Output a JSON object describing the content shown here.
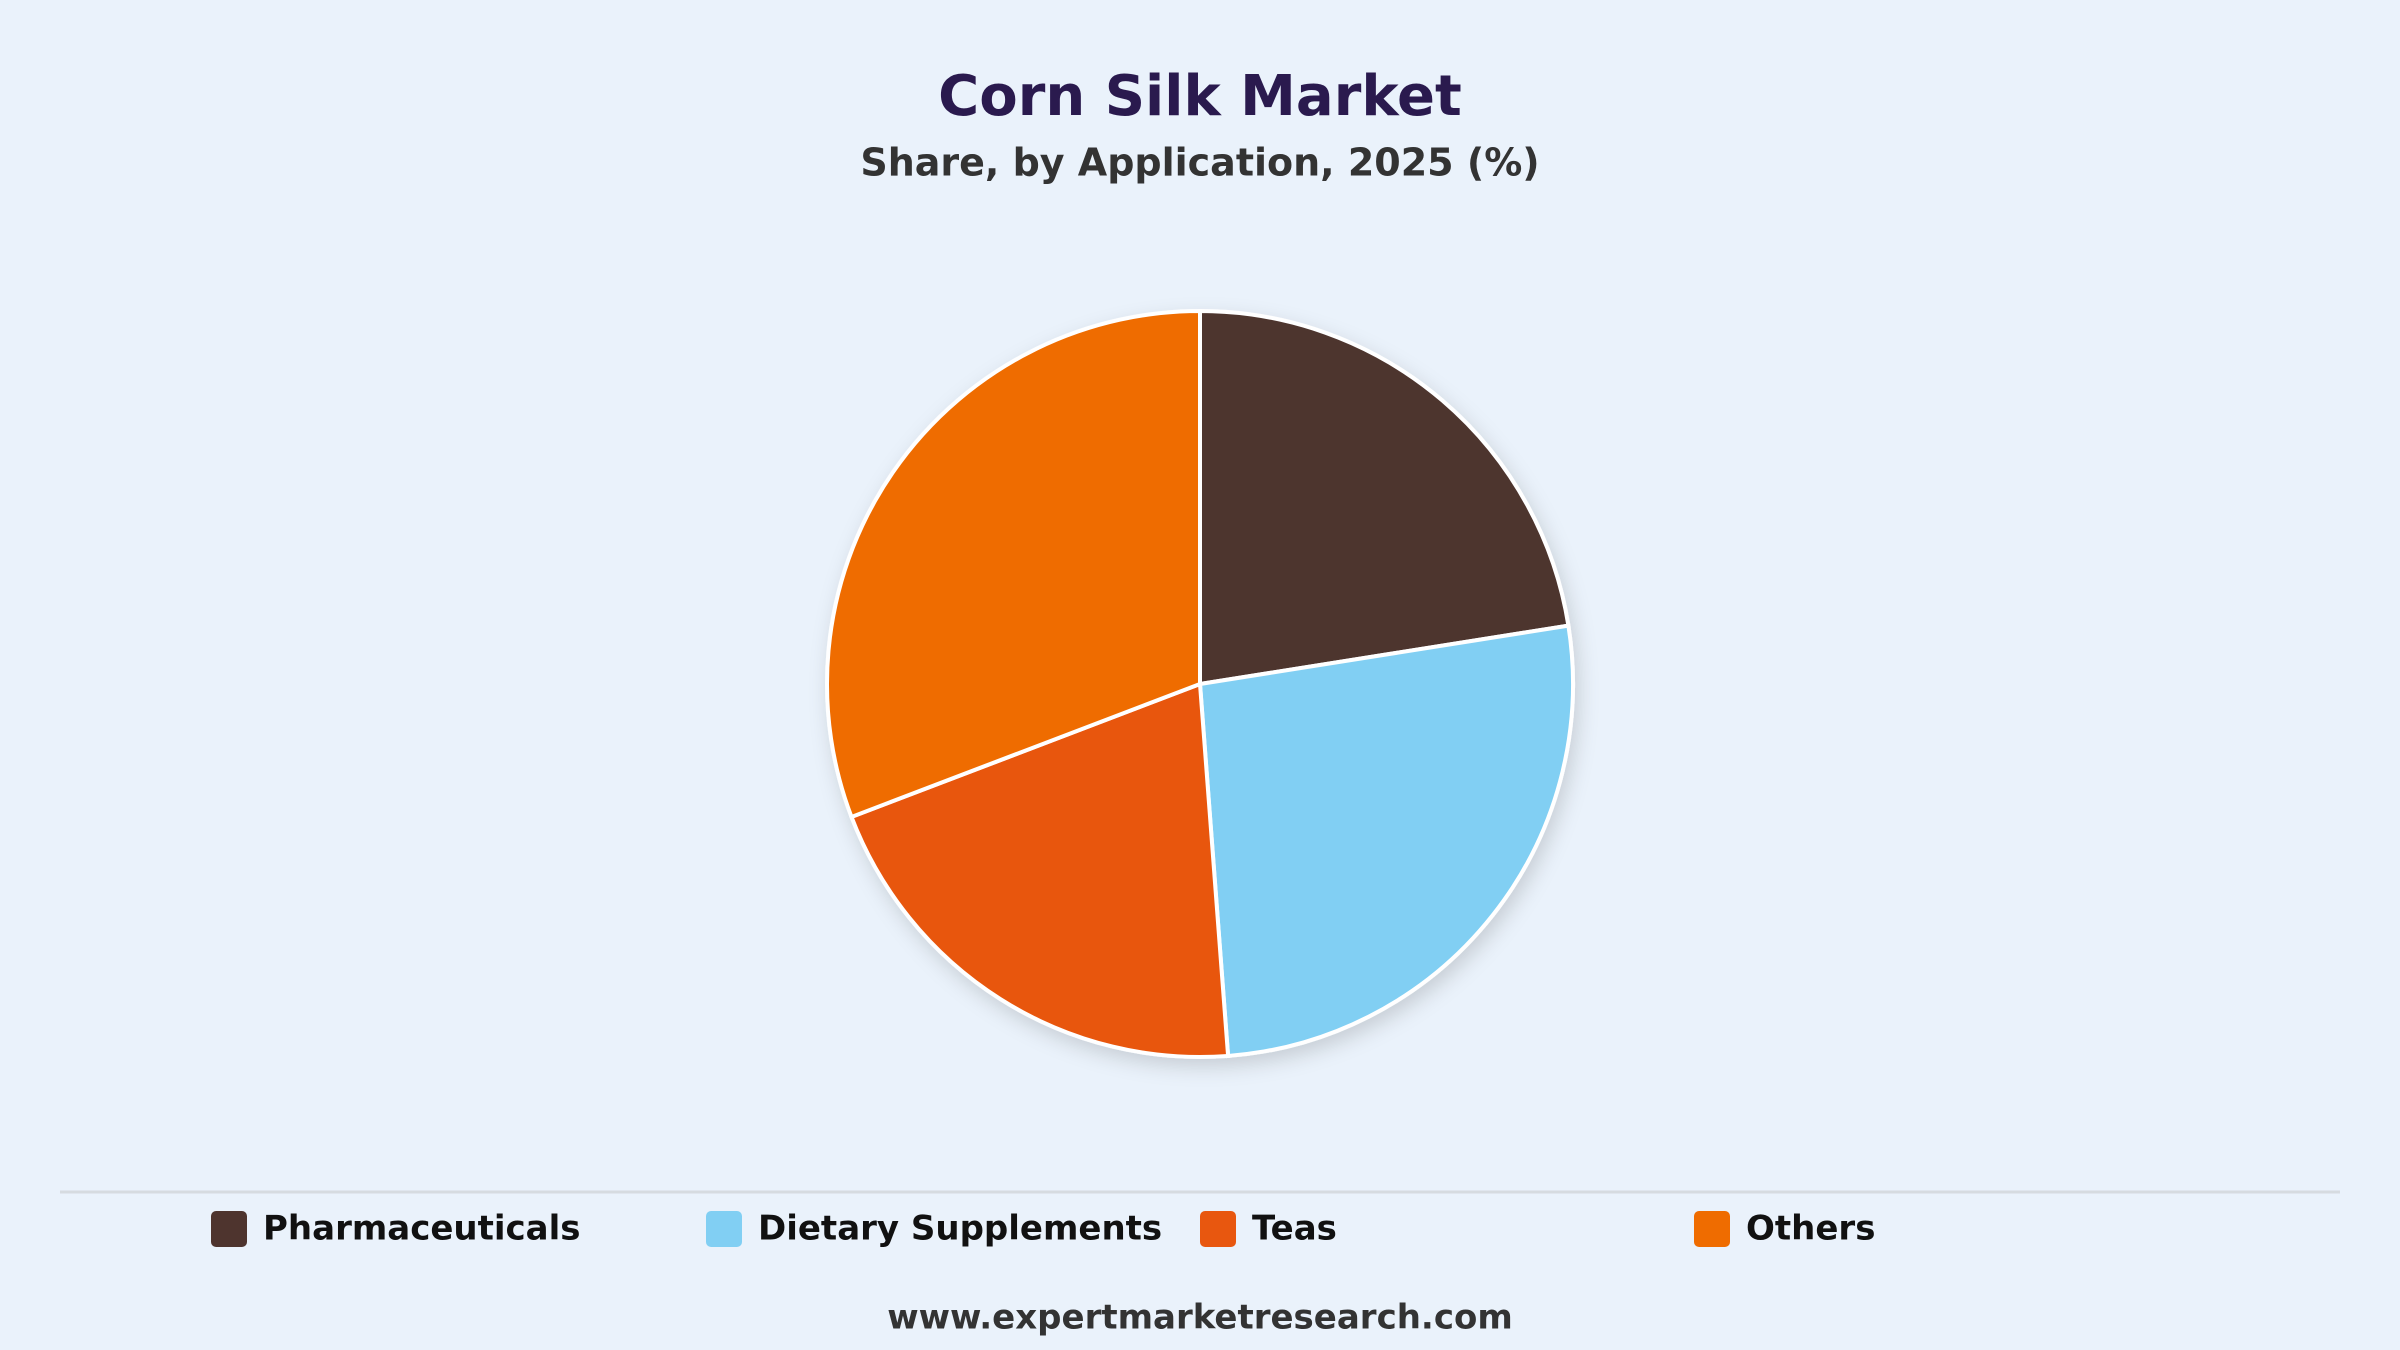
{
  "chart_data": {
    "type": "pie",
    "title": "Corn Silk Market",
    "subtitle": "Share, by Application, 2025 (%)",
    "categories": [
      "Pharmaceuticals",
      "Dietary Supplements",
      "Teas",
      "Others"
    ],
    "values": [
      22.5,
      26.3,
      20.4,
      30.8
    ],
    "colors": [
      "#4e342e",
      "#81cff3",
      "#e8570f",
      "#ef6c00"
    ]
  },
  "footer": "www.expertmarketresearch.com"
}
